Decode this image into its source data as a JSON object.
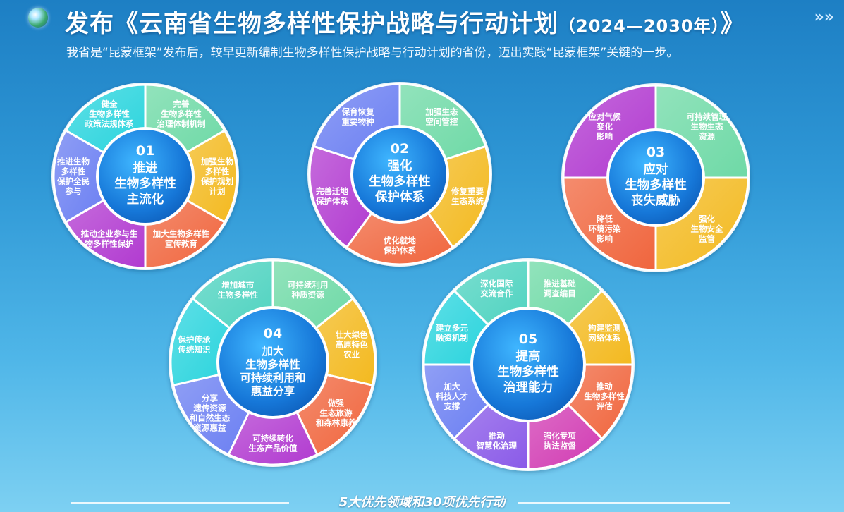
{
  "header": {
    "title_main": "发布《云南省生物多样性保护战略与行动计划",
    "title_years": "（2024—2030年）",
    "title_end": "》",
    "chevrons": "»»"
  },
  "intro": "我省是“昆蒙框架”发布后，较早更新编制生物多样性保护战略与行动计划的省份，迈出实践“昆蒙框架”关键的一步。",
  "areas": [
    {
      "number": "01",
      "title": [
        "推进",
        "生物多样性",
        "主流化"
      ],
      "segments": [
        {
          "label": [
            "完善",
            "生物多样性",
            "治理体制机制"
          ],
          "color": "#6ed9a6"
        },
        {
          "label": [
            "加强生物",
            "多样性",
            "保护规划",
            "计划"
          ],
          "color": "#f3b91f"
        },
        {
          "label": [
            "加大生物多样性",
            "宣传教育"
          ],
          "color": "#f0653d"
        },
        {
          "label": [
            "推动企业参与生",
            "物多样性保护"
          ],
          "color": "#b13ad0"
        },
        {
          "label": [
            "推进生物",
            "多样性",
            "保护全民",
            "参与"
          ],
          "color": "#6b7ff2"
        },
        {
          "label": [
            "健全",
            "生物多样性",
            "政策法规体系"
          ],
          "color": "#2ad4dd"
        }
      ]
    },
    {
      "number": "02",
      "title": [
        "强化",
        "生物多样性",
        "保护体系"
      ],
      "segments": [
        {
          "label": [
            "加强生态",
            "空间管控"
          ],
          "color": "#6ed9a6"
        },
        {
          "label": [
            "修复重要",
            "生态系统"
          ],
          "color": "#f3b91f"
        },
        {
          "label": [
            "优化就地",
            "保护体系"
          ],
          "color": "#f0653d"
        },
        {
          "label": [
            "完善迁地",
            "保护体系"
          ],
          "color": "#b13ad0"
        },
        {
          "label": [
            "保育恢复",
            "重要物种"
          ],
          "color": "#6b7ff2"
        }
      ]
    },
    {
      "number": "03",
      "title": [
        "应对",
        "生物多样性",
        "丧失威胁"
      ],
      "segments": [
        {
          "label": [
            "可持续管理",
            "生物生态",
            "资源"
          ],
          "color": "#6ed9a6"
        },
        {
          "label": [
            "强化",
            "生物安全",
            "监管"
          ],
          "color": "#f3b91f"
        },
        {
          "label": [
            "降低",
            "环境污染",
            "影响"
          ],
          "color": "#f0653d"
        },
        {
          "label": [
            "应对气候",
            "变化",
            "影响"
          ],
          "color": "#b13ad0"
        }
      ]
    },
    {
      "number": "04",
      "title": [
        "加大",
        "生物多样性",
        "可持续利用和",
        "惠益分享"
      ],
      "segments": [
        {
          "label": [
            "可持续利用",
            "种质资源"
          ],
          "color": "#6ed9a6"
        },
        {
          "label": [
            "壮大绿色",
            "高原特色",
            "农业"
          ],
          "color": "#f3b91f"
        },
        {
          "label": [
            "做强",
            "生态旅游",
            "和森林康养"
          ],
          "color": "#f0653d"
        },
        {
          "label": [
            "可持续转化",
            "生态产品价值"
          ],
          "color": "#b13ad0"
        },
        {
          "label": [
            "分享",
            "遗传资源",
            "和自然生态",
            "资源惠益"
          ],
          "color": "#6b7ff2"
        },
        {
          "label": [
            "保护传承",
            "传统知识"
          ],
          "color": "#2ad4dd"
        },
        {
          "label": [
            "增加城市",
            "生物多样性"
          ],
          "color": "#4fd3c0"
        }
      ]
    },
    {
      "number": "05",
      "title": [
        "提高",
        "生物多样性",
        "治理能力"
      ],
      "segments": [
        {
          "label": [
            "推进基础",
            "调查编目"
          ],
          "color": "#6ed9a6"
        },
        {
          "label": [
            "构建监测",
            "网络体系"
          ],
          "color": "#f3b91f"
        },
        {
          "label": [
            "推动",
            "生物多样性",
            "评估"
          ],
          "color": "#f0653d"
        },
        {
          "label": [
            "强化专项",
            "执法监督"
          ],
          "color": "#d13bb3"
        },
        {
          "label": [
            "推动",
            "智慧化治理"
          ],
          "color": "#8a5ae8"
        },
        {
          "label": [
            "加大",
            "科技人才",
            "支撑"
          ],
          "color": "#6b7ff2"
        },
        {
          "label": [
            "建立多元",
            "融资机制"
          ],
          "color": "#2ad4dd"
        },
        {
          "label": [
            "深化国际",
            "交流合作"
          ],
          "color": "#4fd3c0"
        }
      ]
    }
  ],
  "footer": "5大优先领域和30项优先行动"
}
